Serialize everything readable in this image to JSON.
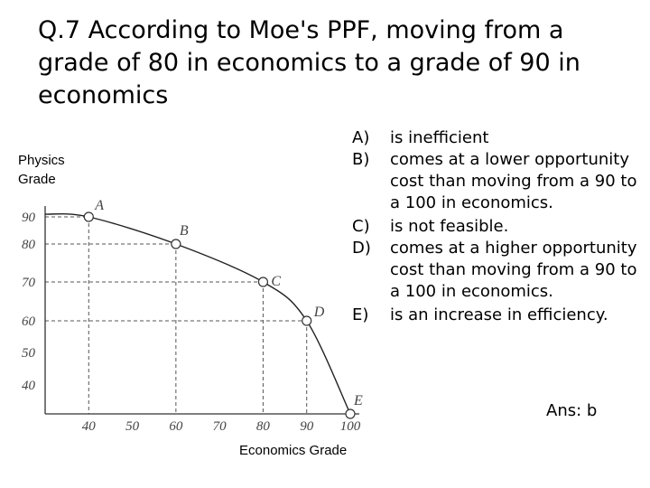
{
  "question": "Q.7 According to Moe's PPF, moving from a grade of 80 in economics to a grade of 90 in economics",
  "choices": [
    {
      "letter": "A)",
      "text": "is inefficient"
    },
    {
      "letter": "B)",
      "text": "comes at a lower opportunity cost than moving from a 90 to a 100 in economics."
    },
    {
      "letter": "C)",
      "text": "is not feasible."
    },
    {
      "letter": "D)",
      "text": "comes at a higher opportunity cost than moving from a 90 to a 100 in economics."
    },
    {
      "letter": "E)",
      "text": "is an increase in efficiency."
    }
  ],
  "answer": "Ans: b",
  "chart_data": {
    "type": "line",
    "title": "",
    "xlabel": "Economics Grade",
    "ylabel": "Physics Grade",
    "xlim": [
      30,
      100
    ],
    "ylim": [
      30,
      100
    ],
    "x_ticks": [
      "40",
      "50",
      "60",
      "70",
      "80",
      "90",
      "100"
    ],
    "y_ticks": [
      "90",
      "80",
      "70",
      "60",
      "50",
      "40"
    ],
    "curve_color": "#222222",
    "points": [
      {
        "label": "A",
        "x": 40,
        "y": 90
      },
      {
        "label": "B",
        "x": 60,
        "y": 80
      },
      {
        "label": "C",
        "x": 80,
        "y": 70
      },
      {
        "label": "D",
        "x": 90,
        "y": 60
      },
      {
        "label": "E",
        "x": 100,
        "y": 30
      }
    ],
    "guide_lines": true,
    "grid": false
  }
}
